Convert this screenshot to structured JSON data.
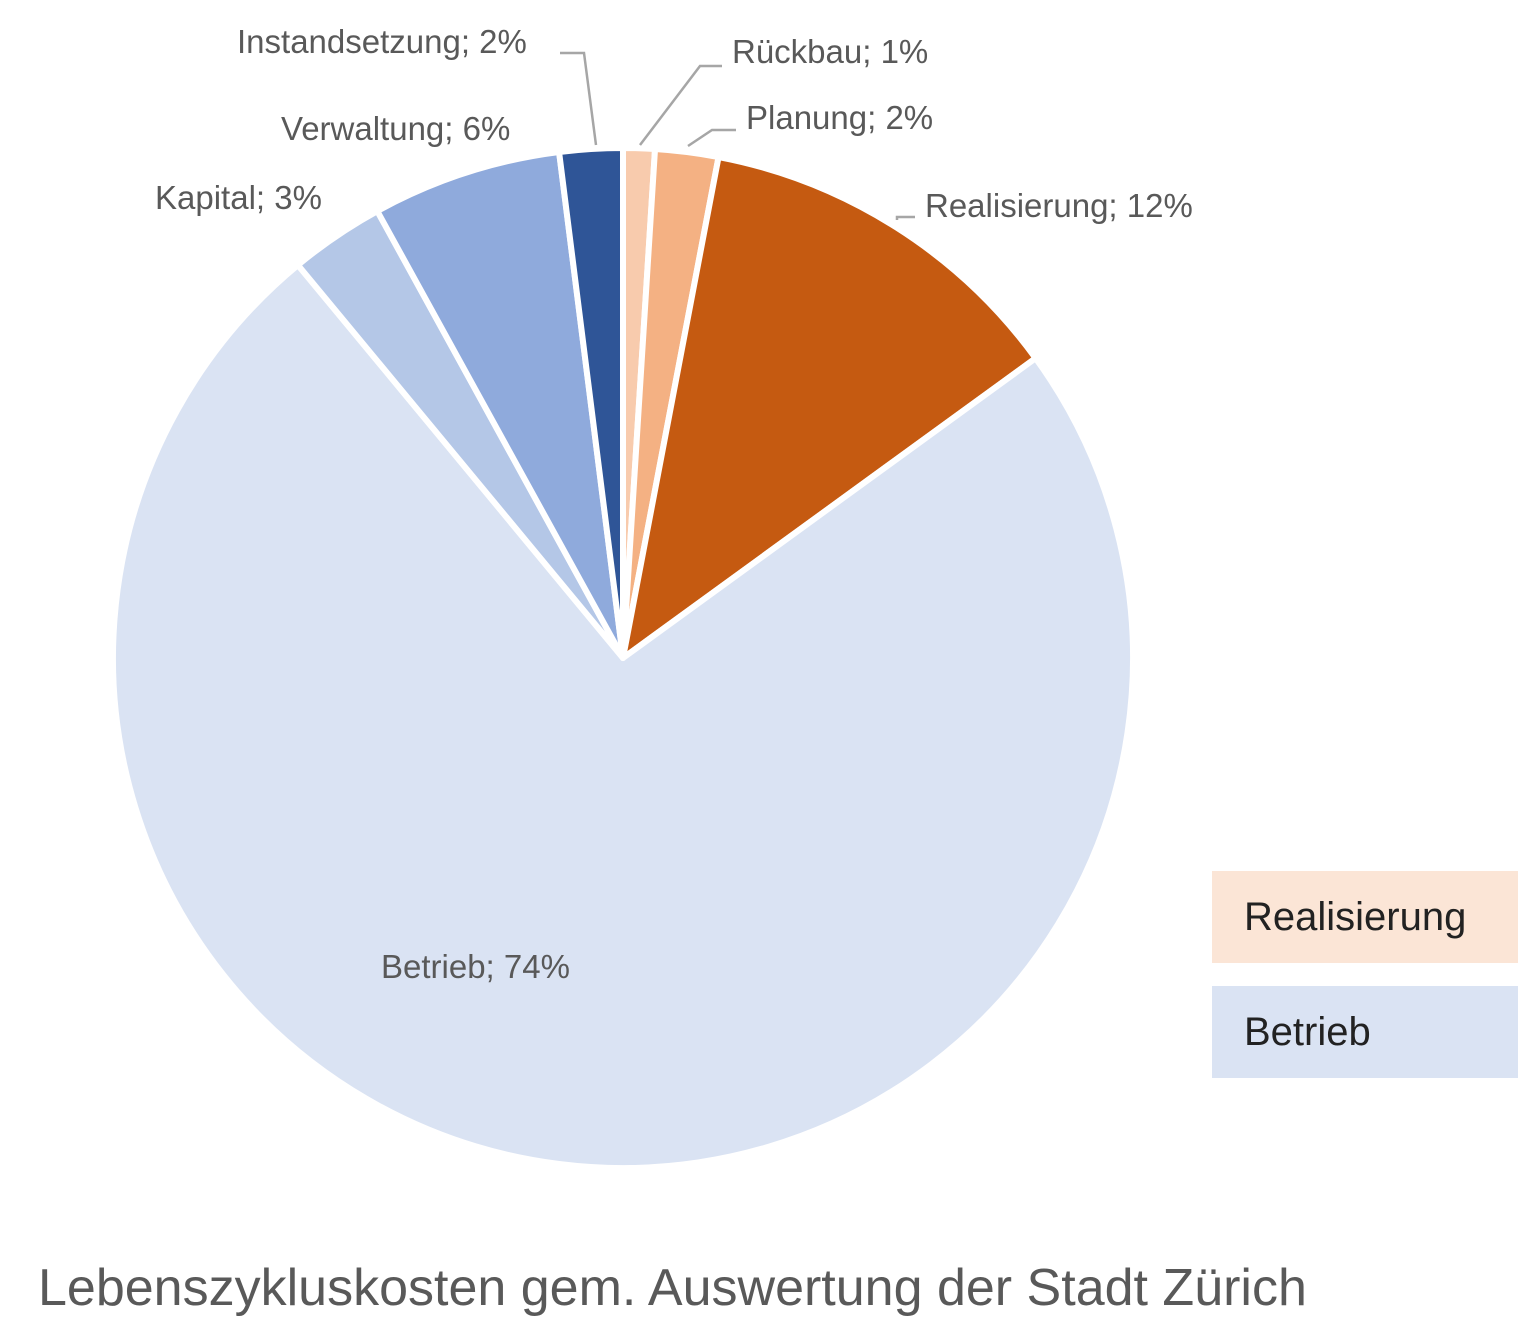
{
  "chart_data": {
    "type": "pie",
    "title": "Lebenszykluskosten gem. Auswertung der Stadt Zürich",
    "start_angle_deg": 0,
    "direction": "clockwise",
    "slices": [
      {
        "name": "Rückbau",
        "value": 1,
        "label": "Rückbau; 1%",
        "color": "#F8CBAD"
      },
      {
        "name": "Planung",
        "value": 2,
        "label": "Planung; 2%",
        "color": "#F4B183"
      },
      {
        "name": "Realisierung",
        "value": 12,
        "label": "Realisierung; 12%",
        "color": "#C55A11"
      },
      {
        "name": "Betrieb",
        "value": 74,
        "label": "Betrieb; 74%",
        "color": "#DAE3F3"
      },
      {
        "name": "Kapital",
        "value": 3,
        "label": "Kapital; 3%",
        "color": "#B4C7E7"
      },
      {
        "name": "Verwaltung",
        "value": 6,
        "label": "Verwaltung; 6%",
        "color": "#8FAADC"
      },
      {
        "name": "Instandsetzung",
        "value": 2,
        "label": "Instandsetzung; 2%",
        "color": "#2F5597"
      }
    ],
    "legend": [
      {
        "label": "Realisierung",
        "color": "#FBE5D6"
      },
      {
        "label": "Betrieb",
        "color": "#DAE3F3"
      }
    ],
    "legend_position": "bottom-right"
  }
}
